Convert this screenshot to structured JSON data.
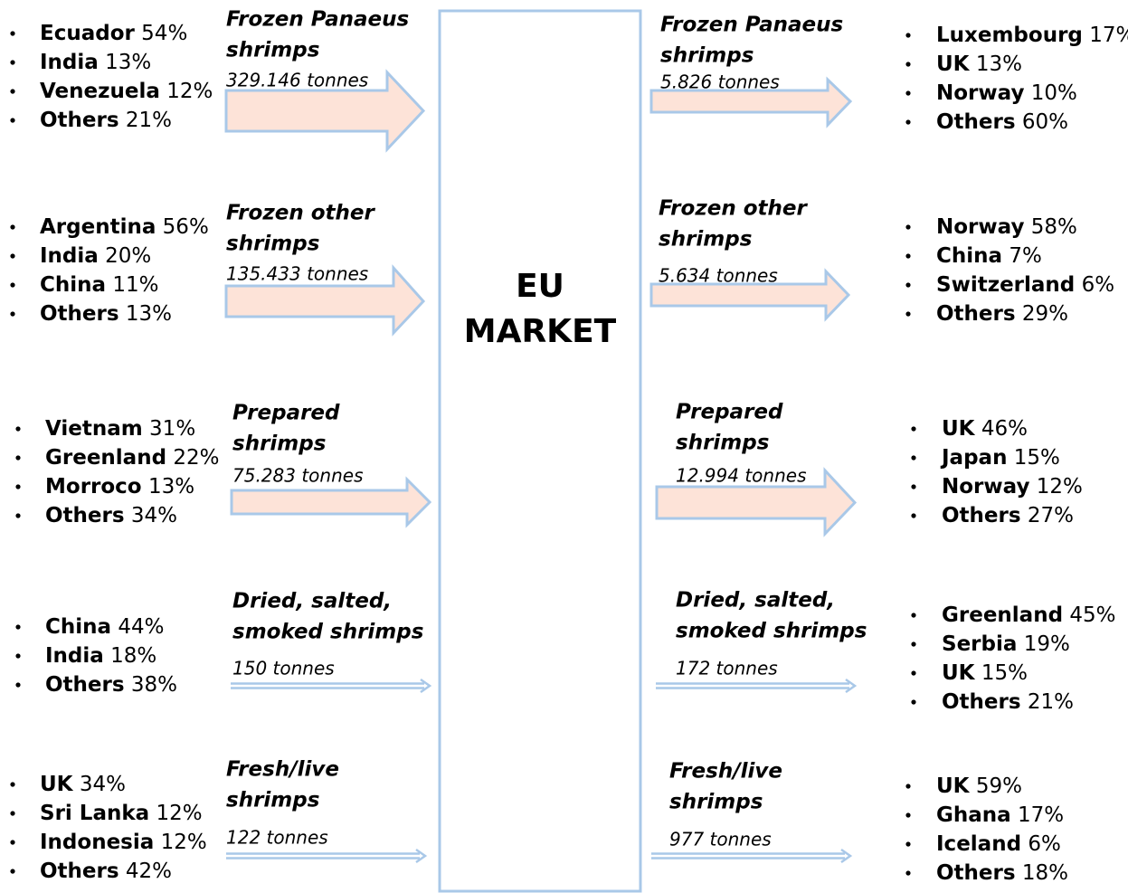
{
  "center": {
    "lines": [
      "EU",
      "MARKET"
    ]
  },
  "flows": [
    {
      "import": {
        "product": [
          "Frozen Panaeus",
          "shrimps"
        ],
        "volume": "329.146 tonnes",
        "partners": [
          {
            "country": "Ecuador",
            "share": "54%"
          },
          {
            "country": "India",
            "share": "13%"
          },
          {
            "country": "Venezuela",
            "share": "12%"
          },
          {
            "country": "Others",
            "share": "21%"
          }
        ]
      },
      "export": {
        "product": [
          "Frozen Panaeus",
          "shrimps"
        ],
        "volume": "5.826 tonnes",
        "partners": [
          {
            "country": "Luxembourg",
            "share": "17%"
          },
          {
            "country": "UK",
            "share": "13%"
          },
          {
            "country": "Norway",
            "share": "10%"
          },
          {
            "country": "Others",
            "share": "60%"
          }
        ]
      }
    },
    {
      "import": {
        "product": [
          "Frozen other",
          "shrimps"
        ],
        "volume": "135.433 tonnes",
        "partners": [
          {
            "country": "Argentina",
            "share": "56%"
          },
          {
            "country": "India",
            "share": "20%"
          },
          {
            "country": "China",
            "share": "11%"
          },
          {
            "country": "Others",
            "share": "13%"
          }
        ]
      },
      "export": {
        "product": [
          "Frozen other",
          "shrimps"
        ],
        "volume": "5.634 tonnes",
        "partners": [
          {
            "country": "Norway",
            "share": "58%"
          },
          {
            "country": "China",
            "share": "7%"
          },
          {
            "country": "Switzerland",
            "share": "6%"
          },
          {
            "country": "Others",
            "share": "29%"
          }
        ]
      }
    },
    {
      "import": {
        "product": [
          "Prepared",
          "shrimps"
        ],
        "volume": "75.283 tonnes",
        "partners": [
          {
            "country": "Vietnam",
            "share": "31%"
          },
          {
            "country": "Greenland",
            "share": "22%"
          },
          {
            "country": "Morroco",
            "share": "13%"
          },
          {
            "country": "Others",
            "share": "34%"
          }
        ]
      },
      "export": {
        "product": [
          "Prepared",
          "shrimps"
        ],
        "volume": "12.994 tonnes",
        "partners": [
          {
            "country": "UK",
            "share": "46%"
          },
          {
            "country": "Japan",
            "share": "15%"
          },
          {
            "country": "Norway",
            "share": "12%"
          },
          {
            "country": "Others",
            "share": "27%"
          }
        ]
      }
    },
    {
      "import": {
        "product": [
          "Dried, salted,",
          "smoked shrimps"
        ],
        "volume": "150 tonnes",
        "partners": [
          {
            "country": "China",
            "share": "44%"
          },
          {
            "country": "India",
            "share": "18%"
          },
          {
            "country": "Others",
            "share": "38%"
          }
        ]
      },
      "export": {
        "product": [
          "Dried, salted,",
          "smoked shrimps"
        ],
        "volume": "172 tonnes",
        "partners": [
          {
            "country": "Greenland",
            "share": "45%"
          },
          {
            "country": "Serbia",
            "share": "19%"
          },
          {
            "country": "UK",
            "share": "15%"
          },
          {
            "country": "Others",
            "share": "21%"
          }
        ]
      }
    },
    {
      "import": {
        "product": [
          "Fresh/live",
          "shrimps"
        ],
        "volume": "122 tonnes",
        "partners": [
          {
            "country": "UK",
            "share": "34%"
          },
          {
            "country": "Sri Lanka",
            "share": "12%"
          },
          {
            "country": "Indonesia",
            "share": "12%"
          },
          {
            "country": "Others",
            "share": "42%"
          }
        ]
      },
      "export": {
        "product": [
          "Fresh/live",
          "shrimps"
        ],
        "volume": "977 tonnes",
        "partners": [
          {
            "country": "UK",
            "share": "59%"
          },
          {
            "country": "Ghana",
            "share": "17%"
          },
          {
            "country": "Iceland",
            "share": "6%"
          },
          {
            "country": "Others",
            "share": "18%"
          }
        ]
      }
    }
  ]
}
